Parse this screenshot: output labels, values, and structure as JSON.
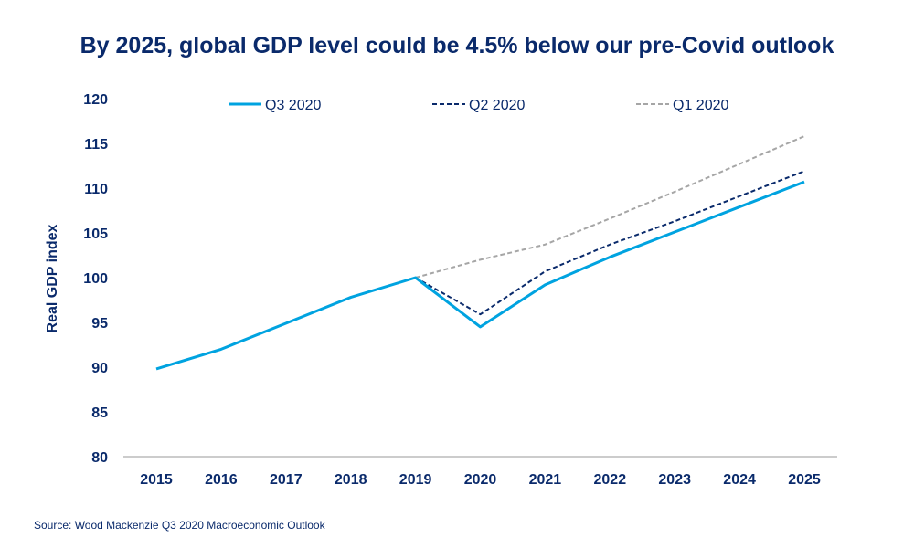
{
  "chart_data": {
    "type": "line",
    "title": "By 2025, global GDP level could be 4.5% below our pre-Covid outlook",
    "ylabel": "Real GDP index",
    "xlabel": "",
    "source": "Source: Wood Mackenzie Q3 2020 Macroeconomic Outlook",
    "ylim": [
      80,
      120
    ],
    "yticks": [
      80,
      85,
      90,
      95,
      100,
      105,
      110,
      115,
      120
    ],
    "x": [
      "2015",
      "2016",
      "2017",
      "2018",
      "2019",
      "2020",
      "2021",
      "2022",
      "2023",
      "2024",
      "2025"
    ],
    "grid": false,
    "legend_placement": "top",
    "series": [
      {
        "name": "Q3 2020",
        "color": "#00a3e0",
        "style": "solid",
        "values": [
          89.8,
          92.0,
          94.9,
          97.8,
          100.0,
          94.5,
          99.2,
          102.3,
          105.1,
          107.9,
          110.7
        ]
      },
      {
        "name": "Q2 2020",
        "color": "#0a2a6b",
        "style": "dashed",
        "values": [
          null,
          null,
          null,
          null,
          100.0,
          95.9,
          100.7,
          103.7,
          106.3,
          109.1,
          111.9
        ]
      },
      {
        "name": "Q1 2020",
        "color": "#a6a6a6",
        "style": "dashed",
        "values": [
          null,
          null,
          null,
          null,
          100.0,
          102.0,
          103.7,
          106.6,
          109.6,
          112.7,
          115.8
        ]
      }
    ]
  }
}
